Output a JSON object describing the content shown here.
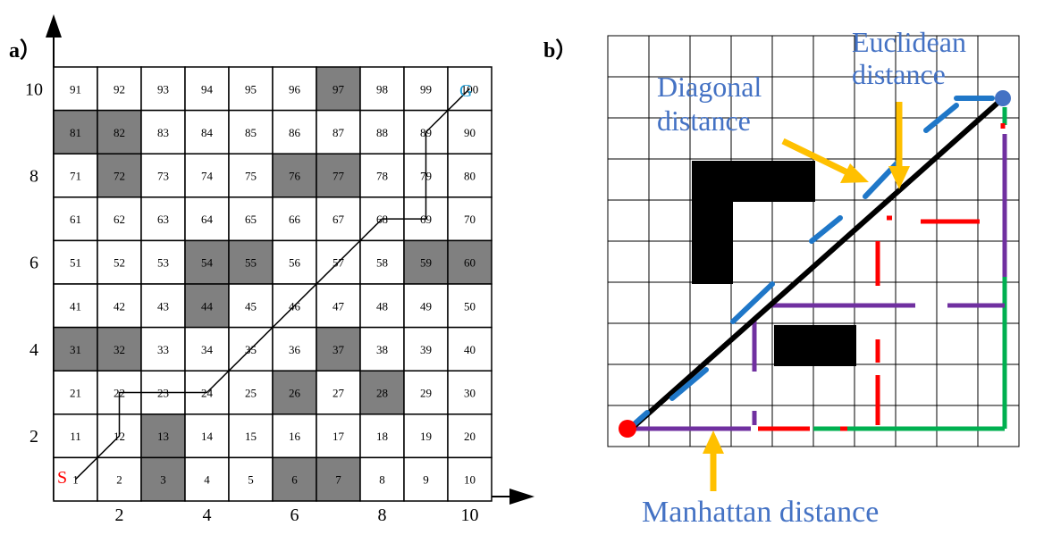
{
  "panel_a": {
    "label": "a）",
    "cells": [
      "91",
      "92",
      "93",
      "94",
      "95",
      "96",
      "97",
      "98",
      "99",
      "100",
      "81",
      "82",
      "83",
      "84",
      "85",
      "86",
      "87",
      "88",
      "89",
      "90",
      "71",
      "72",
      "73",
      "74",
      "75",
      "76",
      "77",
      "78",
      "79",
      "80",
      "61",
      "62",
      "63",
      "64",
      "65",
      "66",
      "67",
      "68",
      "69",
      "70",
      "51",
      "52",
      "53",
      "54",
      "55",
      "56",
      "57",
      "58",
      "59",
      "60",
      "41",
      "42",
      "43",
      "44",
      "45",
      "46",
      "47",
      "48",
      "49",
      "50",
      "31",
      "32",
      "33",
      "34",
      "35",
      "36",
      "37",
      "38",
      "39",
      "40",
      "21",
      "22",
      "23",
      "24",
      "25",
      "26",
      "27",
      "28",
      "29",
      "30",
      "11",
      "12",
      "13",
      "14",
      "15",
      "16",
      "17",
      "18",
      "19",
      "20",
      "1",
      "2",
      "3",
      "4",
      "5",
      "6",
      "7",
      "8",
      "9",
      "10"
    ],
    "obstacles": [
      "97",
      "81",
      "82",
      "72",
      "76",
      "77",
      "54",
      "55",
      "59",
      "60",
      "44",
      "31",
      "32",
      "37",
      "26",
      "28",
      "13",
      "3",
      "6",
      "7"
    ],
    "path": [
      "1",
      "12",
      "22",
      "24",
      "68",
      "69",
      "79",
      "89",
      "100"
    ],
    "start_label": "S",
    "goal_label": "G",
    "y_ticks": [
      "10",
      "8",
      "6",
      "4",
      "2"
    ],
    "x_ticks": [
      "2",
      "4",
      "6",
      "8",
      "10"
    ],
    "colors": {
      "obstacle": "#808080",
      "start": "#ff0000",
      "goal": "#1e9fd8"
    }
  },
  "panel_b": {
    "label": "b）",
    "labels": {
      "euclidean": "Euclidean\ndistance",
      "diagonal": "Diagonal\ndistance",
      "manhattan": "Manhattan distance"
    },
    "colors": {
      "label_text": "#4472c4",
      "arrow": "#ffc000",
      "euclidean": "#000000",
      "diagonal": "#1f77c8",
      "manhattan_purple": "#7030a0",
      "manhattan_red": "#ff0000",
      "manhattan_green": "#00b050",
      "start": "#ff0000",
      "goal": "#4472c4"
    }
  }
}
